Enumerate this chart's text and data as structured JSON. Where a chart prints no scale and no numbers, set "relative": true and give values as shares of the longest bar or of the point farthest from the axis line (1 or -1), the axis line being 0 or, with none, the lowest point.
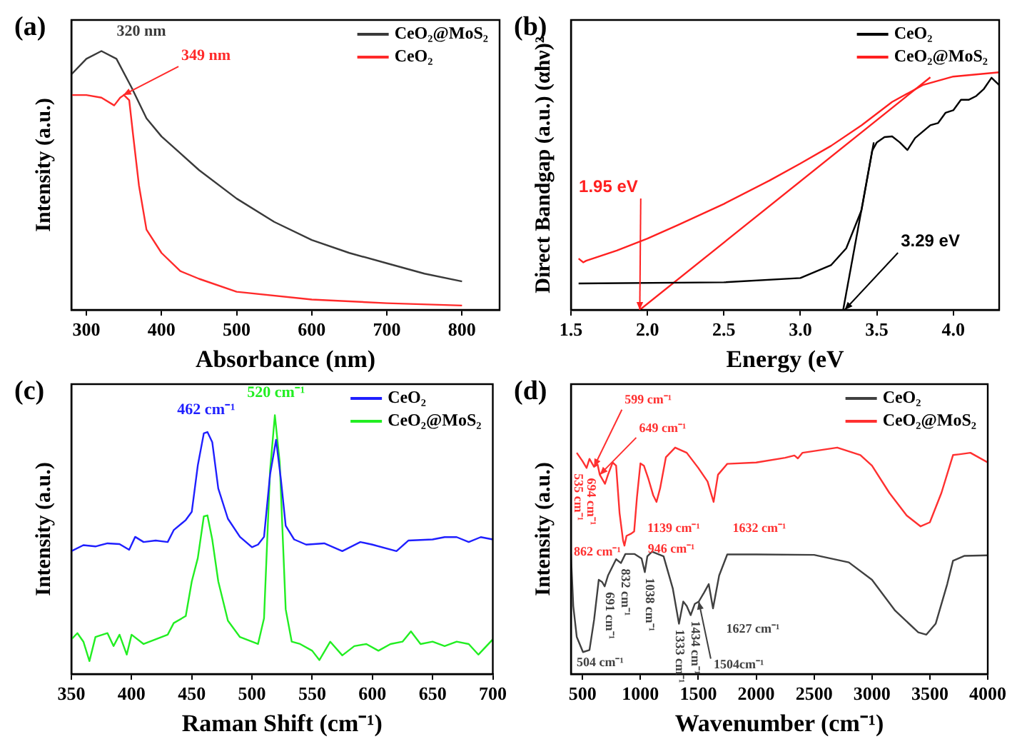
{
  "chart_data": [
    {
      "type": "line",
      "title": "(a)",
      "xlabel": "Absorbance (nm)",
      "ylabel": "Intensity (a.u.)",
      "relative": true,
      "tick_labels": "x",
      "legend": "top right",
      "xlim": [
        280,
        850
      ],
      "xticks": [
        300,
        400,
        500,
        600,
        700,
        800
      ],
      "series": [
        {
          "name": "CeO₂@MoS₂",
          "color": "#3a3a3a",
          "x": [
            280,
            300,
            320,
            340,
            360,
            380,
            400,
            450,
            500,
            550,
            600,
            650,
            700,
            750,
            800
          ],
          "values": [
            0.91,
            0.97,
            1.0,
            0.97,
            0.86,
            0.74,
            0.67,
            0.54,
            0.43,
            0.34,
            0.27,
            0.22,
            0.18,
            0.14,
            0.11
          ]
        },
        {
          "name": "CeO₂",
          "color": "#ff2a2a",
          "x": [
            280,
            300,
            320,
            337,
            345,
            350,
            357,
            362,
            370,
            380,
            400,
            425,
            450,
            500,
            600,
            700,
            800
          ],
          "values": [
            0.83,
            0.83,
            0.82,
            0.79,
            0.82,
            0.83,
            0.81,
            0.68,
            0.48,
            0.31,
            0.22,
            0.15,
            0.12,
            0.07,
            0.04,
            0.026,
            0.017
          ]
        }
      ],
      "annotations": [
        {
          "text": "320 nm",
          "x": 320,
          "y": 1.0
        },
        {
          "text": "349 nm",
          "x": 349,
          "y": 0.83
        }
      ]
    },
    {
      "type": "line",
      "title": "(b)",
      "xlabel": "Energy (eV",
      "ylabel": "Direct Bandgap (a.u.) (αhν)²",
      "relative": true,
      "tick_labels": "x",
      "legend": "top right",
      "xlim": [
        1.5,
        4.3
      ],
      "xticks": [
        1.5,
        {
          "value": 2,
          "label": "2.0"
        },
        2.5,
        {
          "value": 3,
          "label": "3.0"
        },
        3.5,
        {
          "value": 4,
          "label": "4.0"
        }
      ],
      "series": [
        {
          "name": "CeO₂",
          "color": "#000000",
          "x": [
            1.55,
            2.5,
            3.0,
            3.2,
            3.3,
            3.4,
            3.47,
            3.5,
            3.55,
            3.6,
            3.65,
            3.7,
            3.75,
            3.8,
            3.85,
            3.9,
            3.95,
            4.0,
            4.05,
            4.1,
            4.15,
            4.2,
            4.25,
            4.3
          ],
          "values": [
            0.111,
            0.116,
            0.134,
            0.188,
            0.259,
            0.42,
            0.67,
            0.705,
            0.727,
            0.73,
            0.705,
            0.673,
            0.723,
            0.75,
            0.777,
            0.786,
            0.83,
            0.84,
            0.884,
            0.884,
            0.9,
            0.93,
            0.977,
            0.946
          ]
        },
        {
          "name": "CeO₂@MoS₂",
          "color": "#ff2020",
          "x": [
            1.55,
            1.58,
            1.6,
            1.8,
            2.0,
            2.2,
            2.5,
            2.8,
            3.0,
            3.2,
            3.4,
            3.6,
            3.8,
            4.0,
            4.3
          ],
          "values": [
            0.216,
            0.2,
            0.207,
            0.25,
            0.3,
            0.357,
            0.446,
            0.545,
            0.616,
            0.69,
            0.777,
            0.875,
            0.946,
            0.982,
            1.0
          ]
        },
        {
          "color": "#ff2020",
          "x": [
            1.95,
            3.85
          ],
          "values": [
            0,
            0.979
          ]
        },
        {
          "color": "#000000",
          "x": [
            3.28,
            3.48
          ],
          "values": [
            0,
            0.705
          ]
        }
      ],
      "annotations": [
        {
          "text": "1.95 eV",
          "x": 1.95,
          "y": 0
        },
        {
          "text": "3.29 eV",
          "x": 3.29,
          "y": 0
        }
      ]
    },
    {
      "type": "line",
      "title": "(c)",
      "xlabel": "Raman Shift (cm⁻¹)",
      "ylabel": "Intensity (a.u.)",
      "relative": true,
      "tick_labels": "x",
      "legend": "top right",
      "xlim": [
        350,
        700
      ],
      "xticks": [
        350,
        400,
        450,
        500,
        550,
        600,
        650,
        700
      ],
      "series": [
        {
          "name": "CeO₂",
          "color": "#1f1fff",
          "x": [
            350,
            360,
            370,
            380,
            390,
            398,
            403,
            410,
            420,
            430,
            435,
            445,
            450,
            455,
            460,
            463,
            467,
            472,
            480,
            490,
            500,
            505,
            510,
            515,
            520,
            524,
            528,
            535,
            545,
            560,
            575,
            590,
            600,
            620,
            630,
            650,
            660,
            670,
            680,
            690,
            700
          ],
          "values": [
            0.475,
            0.498,
            0.493,
            0.505,
            0.502,
            0.48,
            0.53,
            0.51,
            0.516,
            0.51,
            0.556,
            0.595,
            0.627,
            0.806,
            0.93,
            0.935,
            0.896,
            0.717,
            0.6,
            0.53,
            0.49,
            0.5,
            0.53,
            0.77,
            0.905,
            0.753,
            0.573,
            0.52,
            0.5,
            0.505,
            0.475,
            0.51,
            0.5,
            0.475,
            0.516,
            0.52,
            0.529,
            0.529,
            0.51,
            0.529,
            0.52
          ]
        },
        {
          "name": "CeO₂@MoS₂",
          "color": "#22ee22",
          "x": [
            350,
            355,
            360,
            365,
            370,
            380,
            385,
            390,
            396,
            400,
            410,
            420,
            430,
            435,
            445,
            450,
            455,
            460,
            463,
            467,
            472,
            480,
            490,
            500,
            505,
            510,
            515,
            519,
            523,
            528,
            533,
            540,
            550,
            556,
            565,
            575,
            585,
            595,
            605,
            615,
            625,
            632,
            640,
            650,
            660,
            670,
            680,
            688,
            700
          ],
          "values": [
            0.134,
            0.158,
            0.125,
            0.05,
            0.143,
            0.158,
            0.108,
            0.152,
            0.075,
            0.152,
            0.116,
            0.134,
            0.152,
            0.197,
            0.224,
            0.358,
            0.448,
            0.609,
            0.613,
            0.52,
            0.358,
            0.206,
            0.143,
            0.125,
            0.116,
            0.215,
            0.785,
            1.0,
            0.82,
            0.25,
            0.125,
            0.116,
            0.09,
            0.054,
            0.125,
            0.072,
            0.108,
            0.116,
            0.09,
            0.116,
            0.125,
            0.165,
            0.116,
            0.125,
            0.108,
            0.125,
            0.116,
            0.075,
            0.134
          ]
        }
      ],
      "annotations": [
        {
          "text": "462 cm⁻¹",
          "x": 462,
          "y": 0.935
        },
        {
          "text": "520 cm⁻¹",
          "x": 520,
          "y": 1.0
        }
      ]
    },
    {
      "type": "line",
      "title": "(d)",
      "xlabel": "Wavenumber (cm⁻¹)",
      "ylabel": "Intensity (a.u.)",
      "relative": true,
      "tick_labels": "x",
      "legend": "top right",
      "xlim": [
        400,
        4000
      ],
      "xticks": [
        500,
        1000,
        1500,
        2000,
        2500,
        3000,
        3500,
        4000
      ],
      "series": [
        {
          "name": "CeO₂",
          "color": "#404040",
          "x": [
            400,
            420,
            450,
            504,
            560,
            600,
            640,
            670,
            691,
            720,
            790,
            832,
            870,
            950,
            1010,
            1038,
            1060,
            1100,
            1200,
            1280,
            1333,
            1370,
            1400,
            1434,
            1470,
            1504,
            1550,
            1590,
            1627,
            1680,
            1750,
            2000,
            2500,
            2800,
            3000,
            3200,
            3400,
            3470,
            3550,
            3650,
            3700,
            3800,
            4000
          ],
          "values": [
            0.53,
            0.3,
            0.164,
            0.097,
            0.106,
            0.24,
            0.416,
            0.406,
            0.387,
            0.435,
            0.507,
            0.49,
            0.53,
            0.53,
            0.51,
            0.45,
            0.52,
            0.54,
            0.52,
            0.377,
            0.222,
            0.32,
            0.3,
            0.26,
            0.31,
            0.32,
            0.36,
            0.397,
            0.29,
            0.435,
            0.528,
            0.528,
            0.526,
            0.493,
            0.416,
            0.28,
            0.184,
            0.174,
            0.222,
            0.397,
            0.5,
            0.522,
            0.524
          ]
        },
        {
          "name": "CeO₂@MoS₂",
          "color": "#ff3030",
          "x": [
            450,
            500,
            535,
            560,
            599,
            630,
            649,
            694,
            720,
            760,
            790,
            820,
            850,
            862,
            880,
            920,
            946,
            970,
            1000,
            1030,
            1070,
            1110,
            1139,
            1170,
            1220,
            1300,
            1400,
            1500,
            1580,
            1632,
            1670,
            1750,
            2000,
            2250,
            2330,
            2360,
            2400,
            2700,
            2900,
            3000,
            3150,
            3300,
            3420,
            3500,
            3600,
            3700,
            3750,
            3850,
            4000
          ],
          "values": [
            0.977,
            0.94,
            0.91,
            0.95,
            0.915,
            0.925,
            0.88,
            0.84,
            0.88,
            0.934,
            0.92,
            0.71,
            0.59,
            0.567,
            0.61,
            0.62,
            0.63,
            0.78,
            0.93,
            0.92,
            0.86,
            0.79,
            0.76,
            0.82,
            0.957,
            1.0,
            0.977,
            0.91,
            0.85,
            0.76,
            0.88,
            0.928,
            0.934,
            0.955,
            0.965,
            0.952,
            0.977,
            1.0,
            0.967,
            0.92,
            0.8,
            0.7,
            0.652,
            0.67,
            0.8,
            0.967,
            0.97,
            0.977,
            0.934
          ]
        }
      ],
      "annotations": [
        {
          "text": "504 cm⁻¹",
          "x": 504,
          "y": 0.097
        },
        {
          "text": "691 cm⁻¹",
          "x": 691,
          "y": 0.387
        },
        {
          "text": "832 cm⁻¹",
          "x": 832,
          "y": 0.49
        },
        {
          "text": "1038 cm⁻¹",
          "x": 1038,
          "y": 0.45
        },
        {
          "text": "1333 cm⁻¹",
          "x": 1333,
          "y": 0.222
        },
        {
          "text": "1434 cm⁻¹",
          "x": 1434,
          "y": 0.26
        },
        {
          "text": "1504cm⁻¹",
          "x": 1504,
          "y": 0.32
        },
        {
          "text": "1627 cm⁻¹",
          "x": 1627,
          "y": 0.29
        },
        {
          "text": "535 cm⁻¹",
          "x": 535,
          "y": 0.91
        },
        {
          "text": "599 cm⁻¹",
          "x": 599,
          "y": 0.915
        },
        {
          "text": "649 cm⁻¹",
          "x": 649,
          "y": 0.88
        },
        {
          "text": "694 cm⁻¹",
          "x": 694,
          "y": 0.84
        },
        {
          "text": "862 cm⁻¹",
          "x": 862,
          "y": 0.567
        },
        {
          "text": "946 cm⁻¹",
          "x": 946,
          "y": 0.63
        },
        {
          "text": "1139 cm⁻¹",
          "x": 1139,
          "y": 0.76
        },
        {
          "text": "1632 cm⁻¹",
          "x": 1632,
          "y": 0.76
        }
      ]
    }
  ]
}
